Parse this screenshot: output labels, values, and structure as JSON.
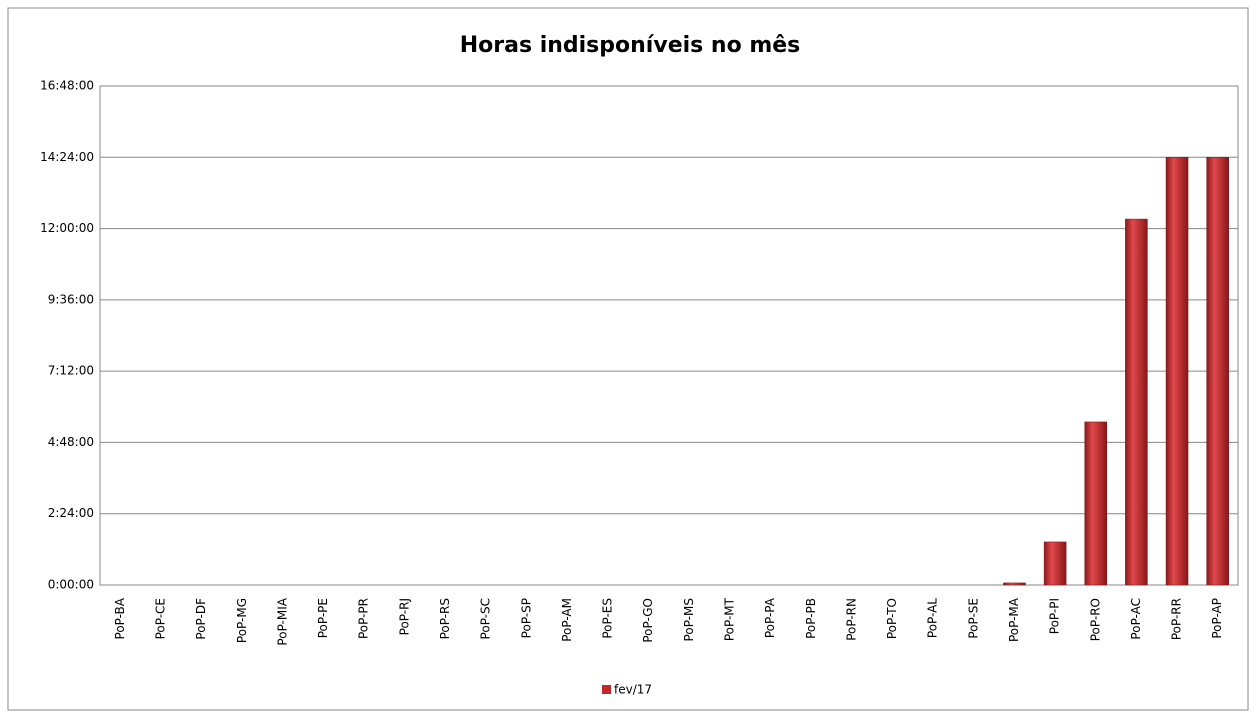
{
  "chart_data": {
    "type": "bar",
    "title": "Horas indisponíveis no mês",
    "categories": [
      "PoP-BA",
      "PoP-CE",
      "PoP-DF",
      "PoP-MG",
      "PoP-MIA",
      "PoP-PE",
      "PoP-PR",
      "PoP-RJ",
      "PoP-RS",
      "PoP-SC",
      "PoP-SP",
      "PoP-AM",
      "PoP-ES",
      "PoP-GO",
      "PoP-MS",
      "PoP-MT",
      "PoP-PA",
      "PoP-PB",
      "PoP-RN",
      "PoP-TO",
      "PoP-AL",
      "PoP-SE",
      "PoP-MA",
      "PoP-PI",
      "PoP-RO",
      "PoP-AC",
      "PoP-RR",
      "PoP-AP"
    ],
    "series": [
      {
        "name": "fev/17",
        "color": "#c0282a",
        "values": [
          0,
          0,
          0,
          0,
          0,
          0,
          0,
          0,
          0,
          0,
          0,
          0,
          0,
          0,
          0,
          0,
          0,
          0,
          0,
          0,
          0,
          0,
          0.07,
          1.45,
          5.49,
          12.32,
          14.4,
          14.4
        ]
      }
    ],
    "ylim": [
      0,
      16.8
    ],
    "yticks": [
      {
        "value": 0,
        "label": "0:00:00"
      },
      {
        "value": 2.4,
        "label": "2:24:00"
      },
      {
        "value": 4.8,
        "label": "4:48:00"
      },
      {
        "value": 7.2,
        "label": "7:12:00"
      },
      {
        "value": 9.6,
        "label": "9:36:00"
      },
      {
        "value": 12,
        "label": "12:00:00"
      },
      {
        "value": 14.4,
        "label": "14:24:00"
      },
      {
        "value": 16.8,
        "label": "16:48:00"
      }
    ],
    "grid": true,
    "legend": "bottom"
  }
}
